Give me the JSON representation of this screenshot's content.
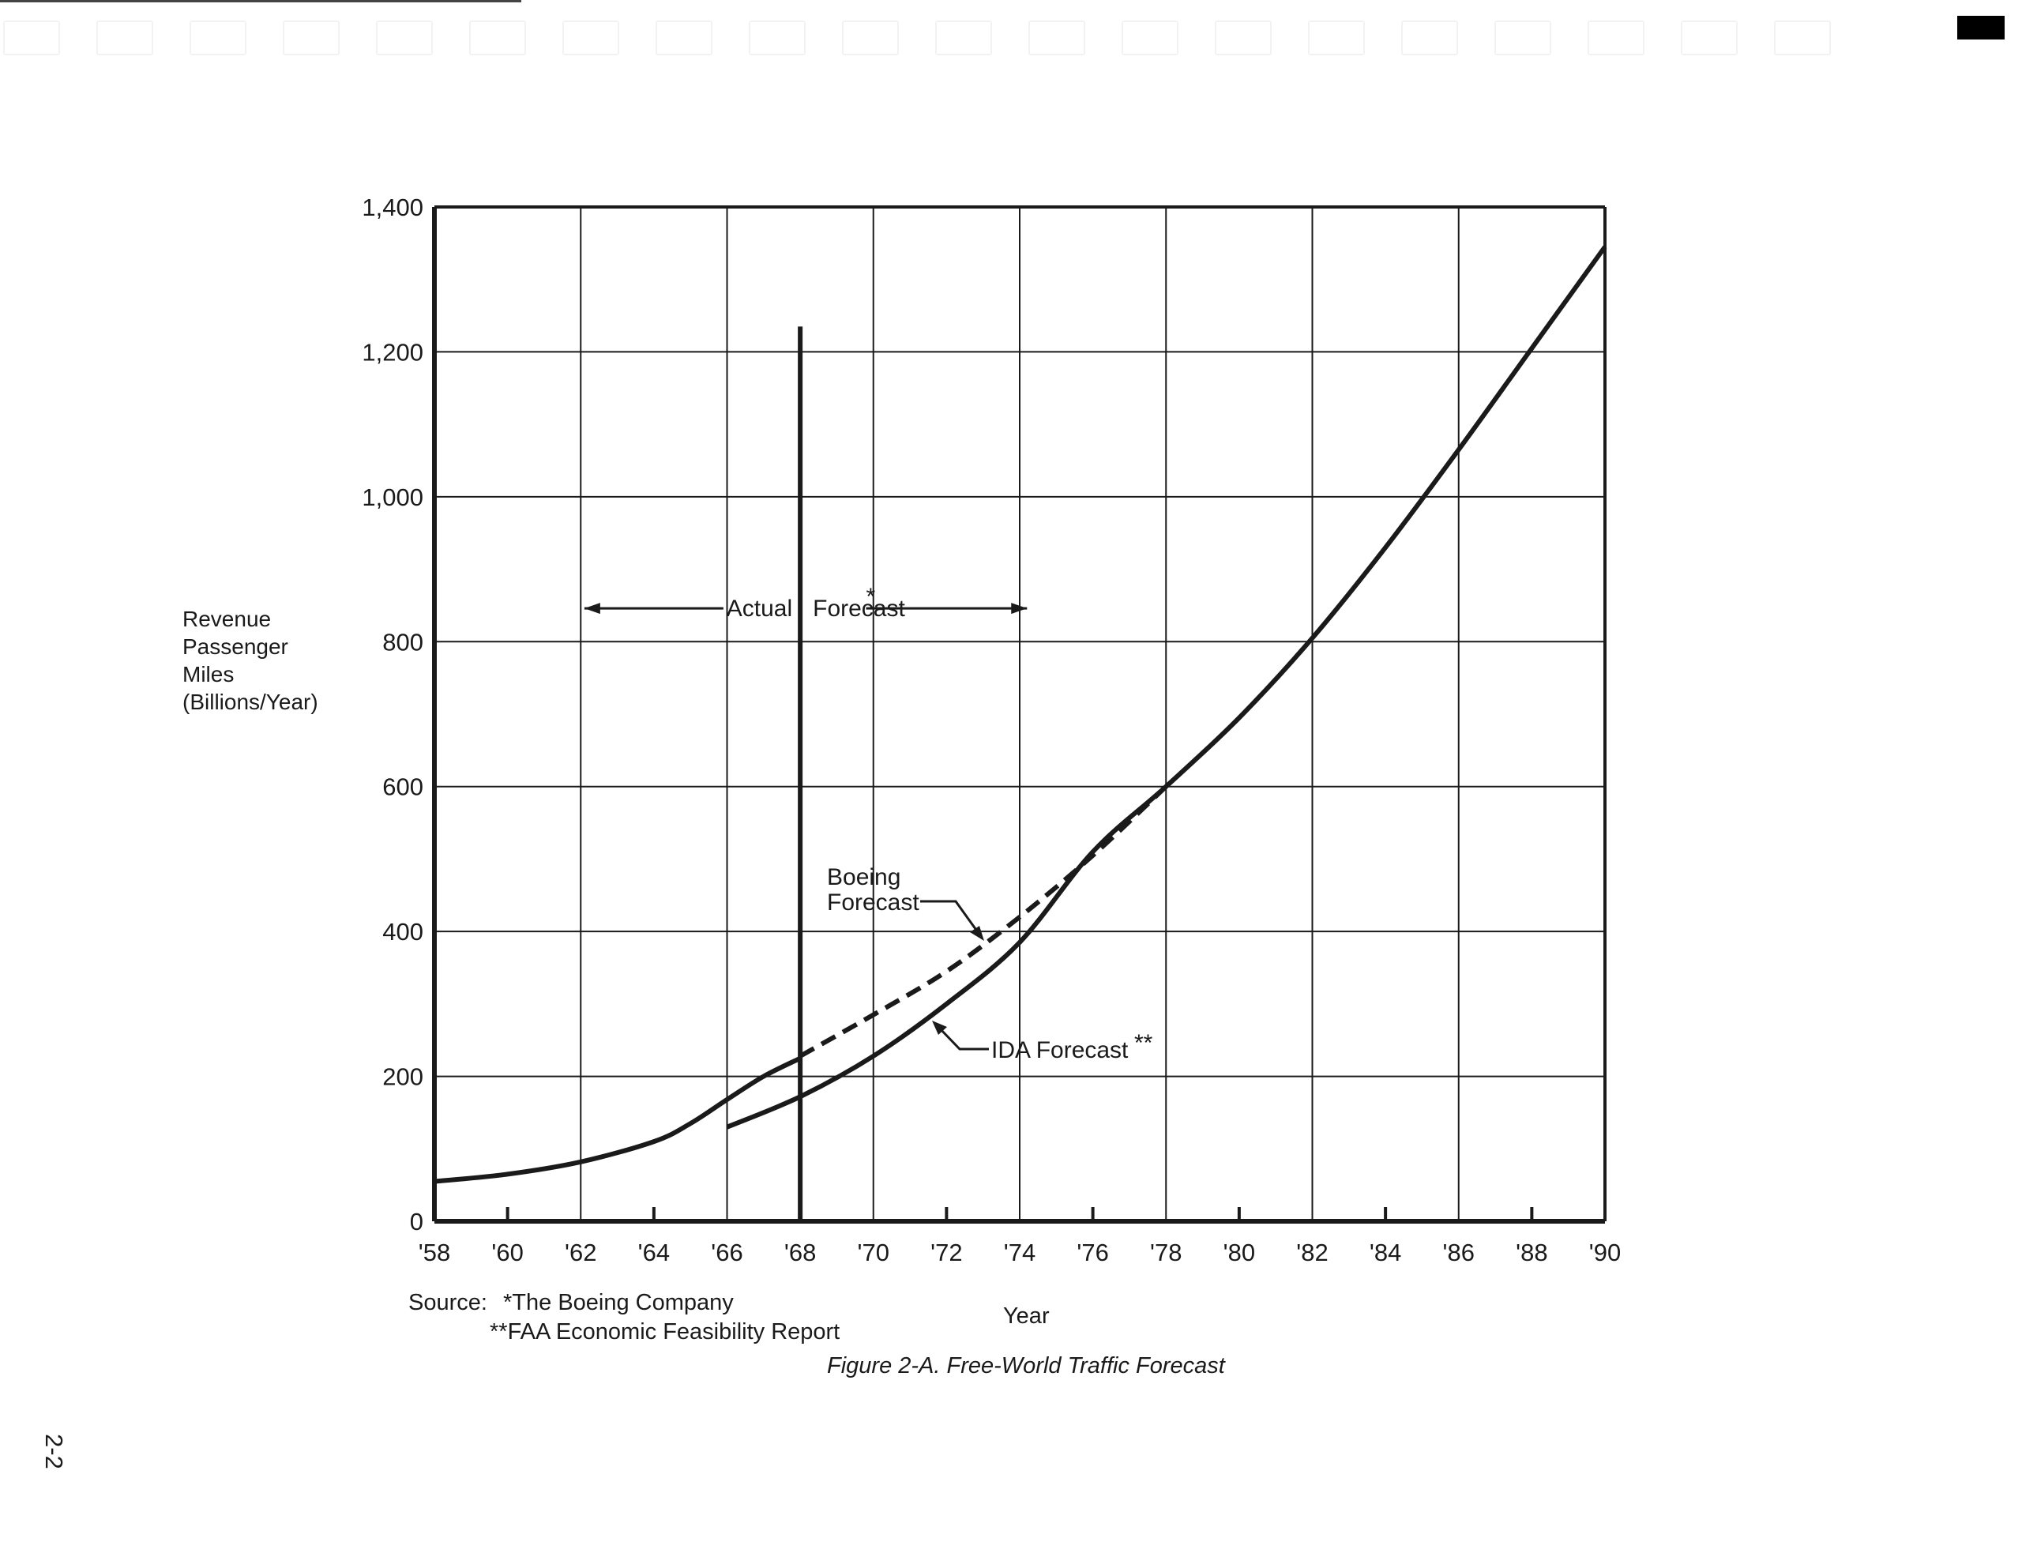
{
  "chart_data": {
    "type": "line",
    "y_axis": {
      "label_lines": [
        "Revenue",
        "Passenger",
        "Miles",
        "(Billions/Year)"
      ],
      "range": [
        0,
        1400
      ],
      "ticks": [
        0,
        200,
        400,
        600,
        800,
        1000,
        1200,
        1400
      ],
      "tick_labels": [
        "0",
        "200",
        "400",
        "600",
        "800",
        "1,000",
        "1,200",
        "1,400"
      ]
    },
    "x_axis": {
      "label": "Year",
      "range": [
        1958,
        1990
      ],
      "ticks": [
        1958,
        1960,
        1962,
        1964,
        1966,
        1968,
        1970,
        1972,
        1974,
        1976,
        1978,
        1980,
        1982,
        1984,
        1986,
        1988,
        1990
      ],
      "tick_labels": [
        "'58",
        "'60",
        "'62",
        "'64",
        "'66",
        "'68",
        "'70",
        "'72",
        "'74",
        "'76",
        "'78",
        "'80",
        "'82",
        "'84",
        "'86",
        "'88",
        "'90"
      ]
    },
    "grid": true,
    "series": [
      {
        "name": "Actual",
        "style": "solid",
        "points": [
          [
            1958,
            55
          ],
          [
            1960,
            65
          ],
          [
            1962,
            82
          ],
          [
            1964,
            110
          ],
          [
            1965,
            135
          ],
          [
            1966,
            168
          ],
          [
            1967,
            200
          ],
          [
            1968,
            225
          ]
        ]
      },
      {
        "name": "IDA Forecast",
        "style": "solid",
        "points": [
          [
            1966,
            130
          ],
          [
            1968,
            172
          ],
          [
            1970,
            228
          ],
          [
            1972,
            300
          ],
          [
            1974,
            385
          ],
          [
            1976,
            510
          ],
          [
            1978,
            600
          ],
          [
            1980,
            695
          ],
          [
            1982,
            805
          ],
          [
            1984,
            930
          ],
          [
            1986,
            1065
          ],
          [
            1988,
            1205
          ],
          [
            1990,
            1345
          ]
        ]
      },
      {
        "name": "Boeing Forecast",
        "style": "dashed",
        "points": [
          [
            1968,
            228
          ],
          [
            1970,
            285
          ],
          [
            1972,
            345
          ],
          [
            1974,
            420
          ],
          [
            1976,
            505
          ],
          [
            1978,
            600
          ]
        ]
      }
    ],
    "annotations": {
      "divider_year": 1968,
      "actual_label": "Actual",
      "forecast_label": "Forecast",
      "forecast_mark": "*",
      "boeing_label_lines": [
        "Boeing",
        "Forecast"
      ],
      "ida_label": "IDA Forecast",
      "ida_mark": "**"
    },
    "colors": {
      "line": "#1a1a1a",
      "grid": "#1a1a1a",
      "background": "#ffffff"
    }
  },
  "source": {
    "prefix": "Source:",
    "line1": "*The Boeing Company",
    "line2": "**FAA Economic Feasibility Report"
  },
  "caption": "Figure 2-A.  Free-World Traffic Forecast",
  "page_number": "2-2"
}
